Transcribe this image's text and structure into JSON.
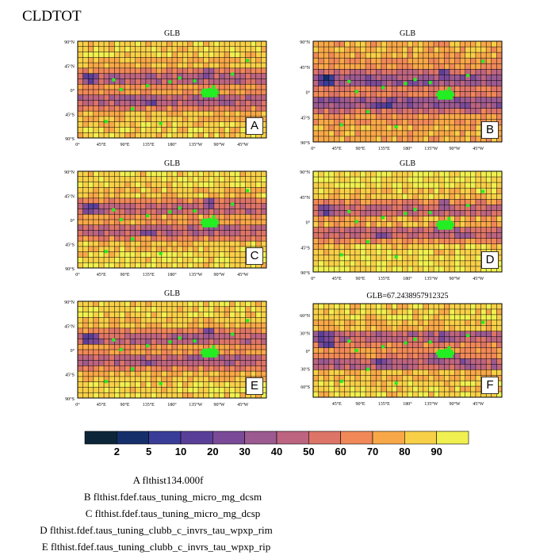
{
  "page": {
    "title": "CLDTOT"
  },
  "chart_data": {
    "type": "heatmap",
    "title": "CLDTOT",
    "panels": [
      {
        "id": "A",
        "title": "GLB",
        "grid": "global"
      },
      {
        "id": "B",
        "title": "GLB",
        "grid": "global"
      },
      {
        "id": "C",
        "title": "GLB",
        "grid": "global"
      },
      {
        "id": "D",
        "title": "GLB",
        "grid": "global"
      },
      {
        "id": "E",
        "title": "GLB",
        "grid": "global"
      },
      {
        "id": "F",
        "title": "GLB=67.2438957912325",
        "grid": "regional"
      }
    ],
    "global_y_ticks": [
      "90°N",
      "45°N",
      "0°",
      "45°S",
      "90°S"
    ],
    "global_x_ticks": [
      "0°",
      "45°E",
      "90°E",
      "135°E",
      "180°",
      "135°W",
      "90°W",
      "45°W"
    ],
    "regional_y_ticks": [
      "60°N",
      "30°N",
      "0°",
      "30°S",
      "60°S"
    ],
    "regional_x_ticks": [
      "45°E",
      "90°E",
      "135°E",
      "180°",
      "135°W",
      "90°W",
      "45°W"
    ],
    "colorbar": {
      "levels": [
        "2",
        "5",
        "10",
        "20",
        "30",
        "40",
        "50",
        "60",
        "70",
        "80",
        "90"
      ],
      "colors": [
        "#0d2538",
        "#142f6a",
        "#3a3d98",
        "#5a3f98",
        "#7a4a98",
        "#9b5a90",
        "#bc6480",
        "#dd7468",
        "#f08858",
        "#f8a848",
        "#f8d048",
        "#f0f050"
      ]
    },
    "cases": [
      "A  flthist134.000f",
      "B  flthist.fdef.taus_tuning_micro_mg_dcsm",
      "C  flthist.fdef.taus_tuning_micro_mg_dcsp",
      "D  flthist.fdef.taus_tuning_clubb_c_invrs_tau_wpxp_rim",
      "E  flthist.fdef.taus_tuning_clubb_c_invrs_tau_wpxp_rip"
    ]
  }
}
